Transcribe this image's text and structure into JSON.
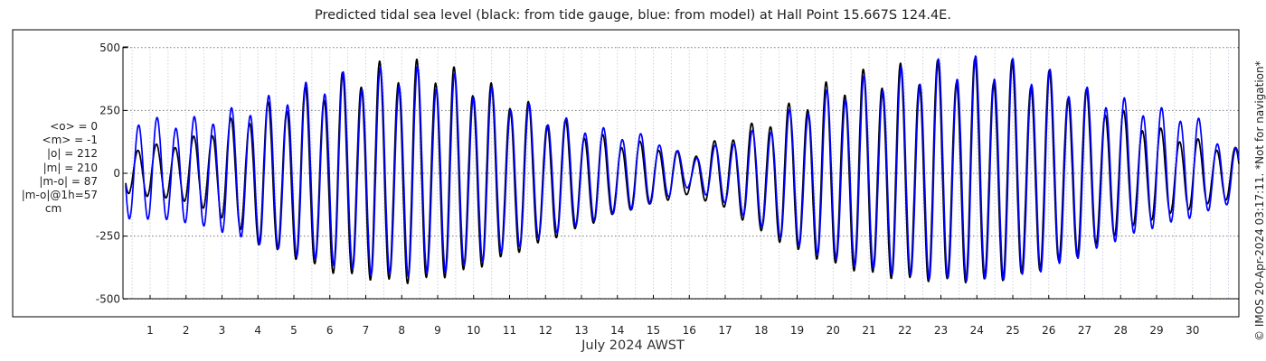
{
  "title": "Predicted tidal sea level (black: from tide gauge, blue: from model) at Hall Point 15.667S 124.4E.",
  "stats": {
    "mean_obs": "<o> = 0",
    "mean_model": "<m> = -1",
    "abs_obs": "|o| = 212",
    "abs_model": "|m| = 210",
    "abs_diff": "|m-o| = 87",
    "abs_diff_1h": "|m-o|@1h=57",
    "unit": "cm"
  },
  "xlabel": "July 2024 AWST",
  "credit": "© IMOS 20-Apr-2024 03:17:11. *Not for navigation*",
  "colors": {
    "gauge": "#000000",
    "model": "#0000ff",
    "grid": "#7a7a7a",
    "frame": "#000000"
  },
  "chart_data": {
    "type": "line",
    "title": "Predicted tidal sea level (black: from tide gauge, blue: from model) at Hall Point 15.667S 124.4E.",
    "xlabel": "July 2024 AWST",
    "ylabel": "",
    "unit": "cm",
    "xlim": [
      0.2,
      31.1
    ],
    "ylim": [
      -550,
      550
    ],
    "x_ticks": [
      1,
      2,
      3,
      4,
      5,
      6,
      7,
      8,
      9,
      10,
      11,
      12,
      13,
      14,
      15,
      16,
      17,
      18,
      19,
      20,
      21,
      22,
      23,
      24,
      25,
      26,
      27,
      28,
      29,
      30
    ],
    "y_ticks": [
      -500,
      -250,
      0,
      250,
      500
    ],
    "grid": true,
    "legend": "none",
    "series": [
      {
        "name": "from tide gauge",
        "color": "#000000",
        "amplitude_envelope": {
          "day": [
            0.5,
            2,
            3,
            4,
            5,
            6,
            7,
            8,
            9,
            10,
            11,
            12,
            13,
            14,
            15,
            16,
            17,
            18,
            19,
            20,
            21,
            22,
            23,
            24,
            25,
            26,
            27,
            28,
            29,
            30,
            31
          ],
          "semidiurnal_cm": [
            130,
            120,
            175,
            270,
            330,
            390,
            430,
            450,
            430,
            385,
            330,
            260,
            200,
            140,
            110,
            70,
            120,
            200,
            300,
            380,
            430,
            450,
            450,
            450,
            430,
            390,
            330,
            270,
            195,
            140,
            120
          ]
        },
        "extremes": {
          "day": [
            0.5,
            1,
            2,
            3,
            4,
            5,
            6,
            7,
            8,
            9,
            10,
            11,
            12,
            13,
            14,
            15,
            16,
            17,
            18,
            19,
            20,
            21,
            22,
            23,
            24,
            25,
            26,
            27,
            28,
            29,
            30,
            31
          ],
          "high_cm": [
            110,
            110,
            130,
            200,
            260,
            320,
            370,
            430,
            445,
            440,
            380,
            320,
            240,
            180,
            130,
            120,
            70,
            150,
            210,
            290,
            370,
            410,
            430,
            440,
            445,
            440,
            400,
            330,
            250,
            180,
            140,
            100
          ],
          "low_cm": [
            -90,
            -100,
            -120,
            -190,
            -300,
            -360,
            -420,
            -450,
            -470,
            -450,
            -410,
            -350,
            -290,
            -230,
            -170,
            -130,
            -90,
            -150,
            -250,
            -330,
            -390,
            -430,
            -455,
            -460,
            -465,
            -450,
            -400,
            -340,
            -250,
            -190,
            -150,
            -110
          ]
        }
      },
      {
        "name": "from model",
        "color": "#0000ff",
        "amplitude_envelope": {
          "day": [
            0.5,
            2,
            3,
            4,
            5,
            6,
            7,
            8,
            9,
            10,
            11,
            12,
            13,
            14,
            15,
            16,
            17,
            18,
            19,
            20,
            21,
            22,
            23,
            24,
            25,
            26,
            27,
            28,
            29,
            30,
            31
          ],
          "semidiurnal_cm": [
            130,
            120,
            175,
            270,
            330,
            385,
            420,
            440,
            420,
            375,
            320,
            250,
            195,
            135,
            105,
            65,
            110,
            190,
            280,
            360,
            420,
            440,
            445,
            445,
            425,
            385,
            325,
            265,
            190,
            135,
            115
          ]
        },
        "extremes": {
          "day": [
            0.5,
            1,
            2,
            3,
            4,
            5,
            6,
            7,
            8,
            9,
            10,
            11,
            12,
            13,
            14,
            15,
            16,
            17,
            18,
            19,
            20,
            21,
            22,
            23,
            24,
            25,
            26,
            27,
            28,
            29,
            30,
            31
          ],
          "high_cm": [
            235,
            220,
            215,
            245,
            290,
            340,
            390,
            410,
            425,
            410,
            370,
            310,
            240,
            200,
            165,
            150,
            60,
            130,
            180,
            270,
            340,
            390,
            420,
            450,
            460,
            450,
            410,
            340,
            300,
            260,
            240,
            100
          ],
          "low_cm": [
            -200,
            -195,
            -210,
            -250,
            -300,
            -350,
            -390,
            -430,
            -440,
            -430,
            -390,
            -330,
            -270,
            -220,
            -170,
            -130,
            -60,
            -130,
            -230,
            -310,
            -370,
            -410,
            -440,
            -455,
            -460,
            -450,
            -410,
            -350,
            -280,
            -230,
            -190,
            -130
          ]
        }
      }
    ]
  }
}
